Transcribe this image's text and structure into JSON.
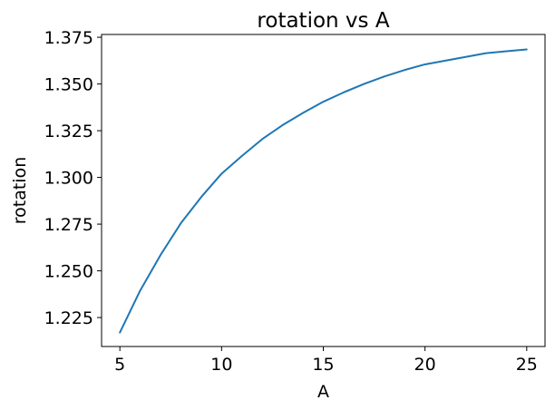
{
  "chart_data": {
    "type": "line",
    "title": "rotation vs A",
    "xlabel": "A",
    "ylabel": "rotation",
    "xlim": [
      4.1,
      25.9
    ],
    "ylim": [
      1.2095,
      1.3765
    ],
    "xticks": [
      5,
      10,
      15,
      20,
      25
    ],
    "xtick_labels": [
      "5",
      "10",
      "15",
      "20",
      "25"
    ],
    "yticks": [
      1.225,
      1.25,
      1.275,
      1.3,
      1.325,
      1.35,
      1.375
    ],
    "ytick_labels": [
      "1.225",
      "1.250",
      "1.275",
      "1.300",
      "1.325",
      "1.350",
      "1.375"
    ],
    "grid": false,
    "series": [
      {
        "color": "#1f77b4",
        "x": [
          5,
          6,
          7,
          8,
          9,
          10,
          11,
          12,
          13,
          14,
          15,
          16,
          17,
          18,
          19,
          20,
          21,
          22,
          23,
          24,
          25
        ],
        "y": [
          1.217,
          1.2395,
          1.2585,
          1.2755,
          1.2895,
          1.302,
          1.3115,
          1.3205,
          1.328,
          1.3345,
          1.3405,
          1.3455,
          1.35,
          1.354,
          1.3575,
          1.3605,
          1.3625,
          1.3645,
          1.3665,
          1.3675,
          1.3685
        ]
      }
    ]
  }
}
